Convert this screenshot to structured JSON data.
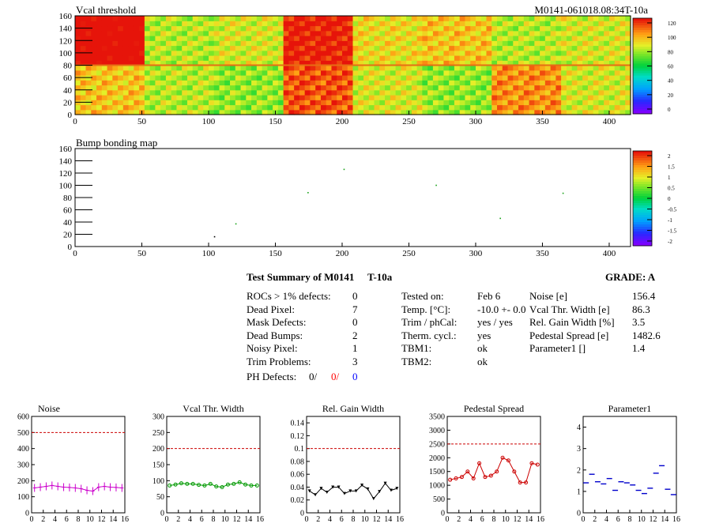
{
  "header": {
    "map1_title": "Vcal threshold",
    "module_id": "M0141-061018.08:34T-10a",
    "map2_title": "Bump bonding map"
  },
  "maps": [
    {
      "name": "vcal-threshold-map",
      "x_ticks": [
        0,
        50,
        100,
        150,
        200,
        250,
        300,
        350,
        400
      ],
      "y_ticks": [
        0,
        20,
        40,
        60,
        80,
        100,
        120,
        140,
        160
      ],
      "xlim": [
        0,
        416
      ],
      "ylim": [
        0,
        160
      ],
      "colorbar_labels": [
        "120",
        "100",
        "80",
        "60",
        "40",
        "20",
        "0"
      ],
      "roc_mean_threshold_top": [
        150,
        95,
        100,
        140,
        105,
        110,
        95,
        100
      ],
      "roc_mean_threshold_bottom": [
        110,
        95,
        90,
        130,
        100,
        90,
        120,
        100
      ]
    },
    {
      "name": "bump-bonding-map",
      "x_ticks": [
        0,
        50,
        100,
        150,
        200,
        250,
        300,
        350,
        400
      ],
      "y_ticks": [
        0,
        20,
        40,
        60,
        80,
        100,
        120,
        140,
        160
      ],
      "xlim": [
        0,
        416
      ],
      "ylim": [
        0,
        160
      ],
      "colorbar_labels": [
        "2",
        "1.5",
        "1",
        "0.5",
        "0",
        "-0.5",
        "-1",
        "-1.5",
        "-2"
      ],
      "points": [
        [
          104,
          17
        ],
        [
          120,
          38
        ],
        [
          174,
          89
        ],
        [
          201,
          127
        ],
        [
          270,
          101
        ],
        [
          318,
          47
        ],
        [
          365,
          88
        ]
      ]
    }
  ],
  "summary": {
    "title": "Test Summary of M0141",
    "temp_label": "T-10a",
    "grade": "GRADE:  A",
    "defects": [
      {
        "label": "ROCs > 1% defects:",
        "value": "0"
      },
      {
        "label": "Dead Pixel:",
        "value": "7"
      },
      {
        "label": "Mask Defects:",
        "value": "0"
      },
      {
        "label": "Dead Bumps:",
        "value": "2"
      },
      {
        "label": "Noisy Pixel:",
        "value": "1"
      },
      {
        "label": "Trim Problems:",
        "value": "3"
      }
    ],
    "ph_defects": {
      "label": "PH Defects:",
      "v1": "0/",
      "v2": "0/",
      "v3": "0"
    },
    "conditions": [
      {
        "label": "Tested on:",
        "value": "Feb 6"
      },
      {
        "label": "Temp. [°C]:",
        "value": "-10.0 +- 0.0"
      },
      {
        "label": "Trim / phCal:",
        "value": "yes / yes"
      },
      {
        "label": "Therm. cycl.:",
        "value": "yes"
      },
      {
        "label": "TBM1:",
        "value": "ok"
      },
      {
        "label": "TBM2:",
        "value": "ok"
      }
    ],
    "results": [
      {
        "label": "Noise [e]",
        "value": "156.4"
      },
      {
        "label": "Vcal Thr. Width [e]",
        "value": "86.3"
      },
      {
        "label": "Rel. Gain Width [%]",
        "value": "3.5"
      },
      {
        "label": "Pedestal Spread [e]",
        "value": "1482.6"
      },
      {
        "label": "Parameter1 []",
        "value": "1.4"
      }
    ]
  },
  "colors": {
    "red": "#ff0000",
    "blue": "#0000ff",
    "magenta": "#cc00cc",
    "green": "#009900",
    "black": "#000000",
    "pedestal": "#cc0000",
    "param": "#0000cc"
  },
  "chart_data": [
    {
      "type": "line",
      "title": "Noise",
      "x": [
        0,
        1,
        2,
        3,
        4,
        5,
        6,
        7,
        8,
        9,
        10,
        11,
        12,
        13,
        14,
        15
      ],
      "values": [
        155,
        160,
        165,
        170,
        165,
        160,
        158,
        155,
        150,
        140,
        135,
        160,
        165,
        160,
        158,
        155
      ],
      "ylim": [
        0,
        600
      ],
      "y_ticks": [
        0,
        100,
        200,
        300,
        400,
        500,
        600
      ],
      "xlim": [
        0,
        16
      ],
      "x_ticks": [
        0,
        2,
        4,
        6,
        8,
        10,
        12,
        14,
        16
      ],
      "ref_line": 500,
      "color": "#cc00cc",
      "marker": "cross"
    },
    {
      "type": "line",
      "title": "Vcal Thr. Width",
      "x": [
        0,
        1,
        2,
        3,
        4,
        5,
        6,
        7,
        8,
        9,
        10,
        11,
        12,
        13,
        14,
        15
      ],
      "values": [
        85,
        88,
        92,
        90,
        90,
        87,
        85,
        90,
        82,
        80,
        88,
        90,
        95,
        88,
        85,
        85
      ],
      "ylim": [
        0,
        300
      ],
      "y_ticks": [
        0,
        50,
        100,
        150,
        200,
        250,
        300
      ],
      "xlim": [
        0,
        16
      ],
      "x_ticks": [
        0,
        2,
        4,
        6,
        8,
        10,
        12,
        14,
        16
      ],
      "ref_line": 200,
      "color": "#009900",
      "marker": "circle"
    },
    {
      "type": "line",
      "title": "Rel. Gain Width",
      "x": [
        0,
        1,
        2,
        3,
        4,
        5,
        6,
        7,
        8,
        9,
        10,
        11,
        12,
        13,
        14,
        15
      ],
      "values": [
        0.034,
        0.028,
        0.038,
        0.032,
        0.04,
        0.04,
        0.03,
        0.034,
        0.034,
        0.043,
        0.037,
        0.022,
        0.033,
        0.046,
        0.035,
        0.038
      ],
      "ylim": [
        0,
        0.15
      ],
      "y_ticks": [
        0,
        0.02,
        0.04,
        0.06,
        0.08,
        0.1,
        0.12,
        0.14
      ],
      "xlim": [
        0,
        16
      ],
      "x_ticks": [
        0,
        2,
        4,
        6,
        8,
        10,
        12,
        14,
        16
      ],
      "ref_line": 0.1,
      "color": "#000000",
      "marker": "triangle"
    },
    {
      "type": "line",
      "title": "Pedestal Spread",
      "x": [
        0,
        1,
        2,
        3,
        4,
        5,
        6,
        7,
        8,
        9,
        10,
        11,
        12,
        13,
        14,
        15
      ],
      "values": [
        1200,
        1250,
        1300,
        1500,
        1250,
        1800,
        1300,
        1350,
        1500,
        2000,
        1900,
        1500,
        1100,
        1100,
        1800,
        1750
      ],
      "ylim": [
        0,
        3500
      ],
      "y_ticks": [
        0,
        500,
        1000,
        1500,
        2000,
        2500,
        3000,
        3500
      ],
      "xlim": [
        0,
        16
      ],
      "x_ticks": [
        0,
        2,
        4,
        6,
        8,
        10,
        12,
        14,
        16
      ],
      "ref_line": 2500,
      "color": "#cc0000",
      "marker": "circle"
    },
    {
      "type": "scatter",
      "title": "Parameter1",
      "x": [
        0,
        1,
        2,
        3,
        4,
        5,
        6,
        7,
        8,
        9,
        10,
        11,
        12,
        13,
        14,
        15
      ],
      "values": [
        1.4,
        1.8,
        1.45,
        1.35,
        1.6,
        1.05,
        1.45,
        1.4,
        1.3,
        1.05,
        0.9,
        1.15,
        1.85,
        2.2,
        1.1,
        0.85
      ],
      "ylim": [
        0,
        4.5
      ],
      "y_ticks": [
        0,
        1,
        2,
        3,
        4
      ],
      "xlim": [
        0,
        16
      ],
      "x_ticks": [
        0,
        2,
        4,
        6,
        8,
        10,
        12,
        14,
        16
      ],
      "color": "#0000cc",
      "marker": "hline"
    }
  ]
}
